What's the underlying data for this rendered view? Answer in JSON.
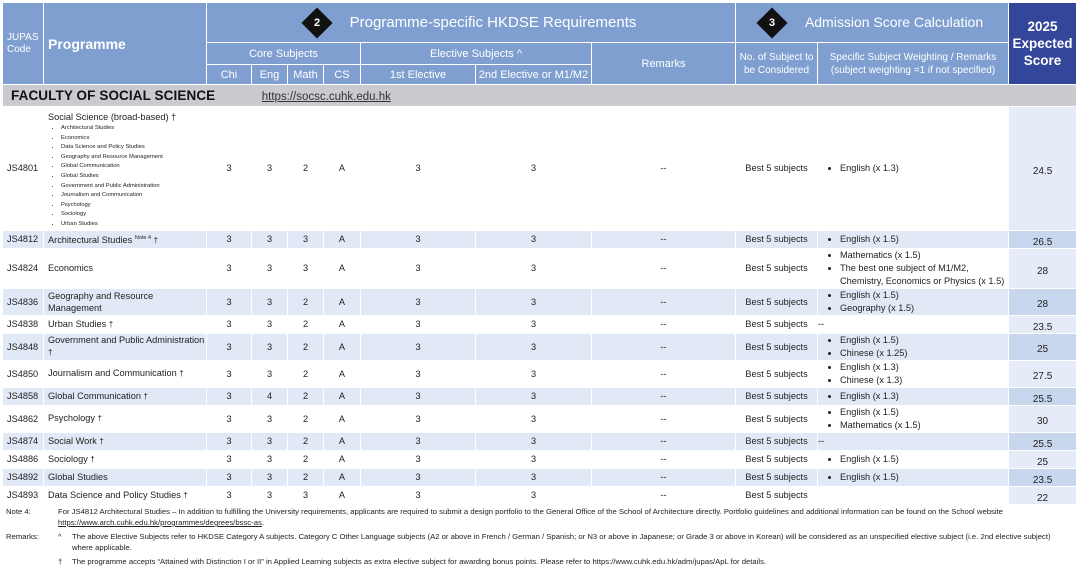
{
  "header": {
    "code_label_1": "JUPAS",
    "code_label_2": "Code",
    "programme_label": "Programme",
    "section2_number": "2",
    "section2_title": "Programme-specific HKDSE Requirements",
    "section3_number": "3",
    "section3_title": "Admission Score Calculation",
    "score_line1": "2025",
    "score_line2": "Expected",
    "score_line3": "Score",
    "core_subjects": "Core Subjects",
    "elective_subjects": "Elective Subjects ^",
    "remarks": "Remarks",
    "num_subjects_line1": "No. of Subject to",
    "num_subjects_line2": "be Considered",
    "weighting_line1": "Specific Subject Weighting / Remarks",
    "weighting_line2": "(subject weighting =1 if not specified)",
    "chi": "Chi",
    "eng": "Eng",
    "math": "Math",
    "cs": "CS",
    "elective1": "1st Elective",
    "elective2": "2nd Elective or M1/M2"
  },
  "faculty": {
    "name": "FACULTY OF SOCIAL SCIENCE",
    "url": "https://socsc.cuhk.edu.hk"
  },
  "first_row": {
    "code": "JS4801",
    "title": "Social Science (broad-based) †",
    "streams": [
      "Architectural Studies",
      "Economics",
      "Data Science and Policy Studies",
      "Geography and Resource Management",
      "Global Communication",
      "Global Studies",
      "Government and Public Administration",
      "Journalism and Communication",
      "Psychology",
      "Sociology",
      "Urban Studies"
    ],
    "chi": "3",
    "eng": "3",
    "math": "2",
    "cs": "A",
    "e1": "3",
    "e2": "3",
    "remarks": "--",
    "num": "Best 5 subjects",
    "weights": [
      "English (x 1.3)"
    ],
    "score": "24.5"
  },
  "rows": [
    {
      "code": "JS4812",
      "prog": "Architectural Studies",
      "note": "Note 4",
      "dagger": "†",
      "chi": "3",
      "eng": "3",
      "math": "3",
      "cs": "A",
      "e1": "3",
      "e2": "3",
      "remarks": "--",
      "num": "Best 5 subjects",
      "weights": [
        "English (x 1.5)"
      ],
      "weight_text": "",
      "score": "26.5"
    },
    {
      "code": "JS4824",
      "prog": "Economics",
      "note": "",
      "dagger": "",
      "chi": "3",
      "eng": "3",
      "math": "3",
      "cs": "A",
      "e1": "3",
      "e2": "3",
      "remarks": "--",
      "num": "Best 5 subjects",
      "weights": [
        "Mathematics (x 1.5)",
        "The best one subject of M1/M2, Chemistry, Economics or Physics (x 1.5)"
      ],
      "weight_text": "",
      "score": "28"
    },
    {
      "code": "JS4836",
      "prog": "Geography and Resource Management",
      "note": "",
      "dagger": "",
      "chi": "3",
      "eng": "3",
      "math": "2",
      "cs": "A",
      "e1": "3",
      "e2": "3",
      "remarks": "--",
      "num": "Best 5 subjects",
      "weights": [
        "English (x 1.5)",
        "Geography (x 1.5)"
      ],
      "weight_text": "",
      "score": "28"
    },
    {
      "code": "JS4838",
      "prog": "Urban Studies",
      "note": "",
      "dagger": "†",
      "chi": "3",
      "eng": "3",
      "math": "2",
      "cs": "A",
      "e1": "3",
      "e2": "3",
      "remarks": "--",
      "num": "Best 5 subjects",
      "weights": [],
      "weight_text": "--",
      "score": "23.5"
    },
    {
      "code": "JS4848",
      "prog": "Government and Public Administration",
      "note": "",
      "dagger": "†",
      "chi": "3",
      "eng": "3",
      "math": "2",
      "cs": "A",
      "e1": "3",
      "e2": "3",
      "remarks": "--",
      "num": "Best 5 subjects",
      "weights": [
        "English (x 1.5)",
        "Chinese (x 1.25)"
      ],
      "weight_text": "",
      "score": "25"
    },
    {
      "code": "JS4850",
      "prog": "Journalism and Communication",
      "note": "",
      "dagger": "†",
      "chi": "3",
      "eng": "3",
      "math": "2",
      "cs": "A",
      "e1": "3",
      "e2": "3",
      "remarks": "--",
      "num": "Best 5 subjects",
      "weights": [
        "English (x 1.3)",
        "Chinese (x 1.3)"
      ],
      "weight_text": "",
      "score": "27.5"
    },
    {
      "code": "JS4858",
      "prog": "Global Communication",
      "note": "",
      "dagger": "†",
      "chi": "3",
      "eng": "4",
      "math": "2",
      "cs": "A",
      "e1": "3",
      "e2": "3",
      "remarks": "--",
      "num": "Best 5 subjects",
      "weights": [
        "English (x 1.3)"
      ],
      "weight_text": "",
      "score": "25.5"
    },
    {
      "code": "JS4862",
      "prog": "Psychology",
      "note": "",
      "dagger": "†",
      "chi": "3",
      "eng": "3",
      "math": "2",
      "cs": "A",
      "e1": "3",
      "e2": "3",
      "remarks": "--",
      "num": "Best 5 subjects",
      "weights": [
        "English (x 1.5)",
        "Mathematics (x 1.5)"
      ],
      "weight_text": "",
      "score": "30"
    },
    {
      "code": "JS4874",
      "prog": "Social Work",
      "note": "",
      "dagger": "†",
      "chi": "3",
      "eng": "3",
      "math": "2",
      "cs": "A",
      "e1": "3",
      "e2": "3",
      "remarks": "--",
      "num": "Best 5 subjects",
      "weights": [],
      "weight_text": "--",
      "score": "25.5"
    },
    {
      "code": "JS4886",
      "prog": "Sociology",
      "note": "",
      "dagger": "†",
      "chi": "3",
      "eng": "3",
      "math": "2",
      "cs": "A",
      "e1": "3",
      "e2": "3",
      "remarks": "--",
      "num": "Best 5 subjects",
      "weights": [
        "English (x 1.5)"
      ],
      "weight_text": "",
      "score": "25"
    },
    {
      "code": "JS4892",
      "prog": "Global Studies",
      "note": "",
      "dagger": "",
      "chi": "3",
      "eng": "3",
      "math": "2",
      "cs": "A",
      "e1": "3",
      "e2": "3",
      "remarks": "--",
      "num": "Best 5 subjects",
      "weights": [
        "English (x 1.5)"
      ],
      "weight_text": "",
      "score": "23.5"
    },
    {
      "code": "JS4893",
      "prog": "Data Science and Policy Studies",
      "note": "",
      "dagger": "†",
      "chi": "3",
      "eng": "3",
      "math": "3",
      "cs": "A",
      "e1": "3",
      "e2": "3",
      "remarks": "--",
      "num": "Best 5 subjects",
      "weights": [],
      "weight_text": "",
      "score": "22"
    }
  ],
  "notes": {
    "note4_label": "Note 4:",
    "note4_text": "For JS4812 Architectural Studies – In addition to fulfilling the University requirements, applicants are required to submit a design portfolio to the General Office of the School of Architecture directly. Portfolio guidelines and additional information can be found on the School website ",
    "note4_link": "https://www.arch.cuhk.edu.hk/programmes/degrees/bssc-as",
    "note4_end": ".",
    "remarks_label": "Remarks:",
    "caret": "^",
    "caret_text": "The above Elective Subjects refer to HKDSE Category A subjects. Category C Other Language subjects (A2 or above in French / German / Spanish; or N3 or above in Japanese; or Grade 3 or above in Korean) will be considered as an unspecified elective subject (i.e. 2nd elective subject) where applicable.",
    "dagger": "†",
    "dagger_text": "The programme accepts “Attained with Distinction I or II” in Applied Learning subjects as extra elective subject for awarding bonus points. Please refer to https://www.cuhk.edu.hk/adm/jupas/ApL for details."
  }
}
